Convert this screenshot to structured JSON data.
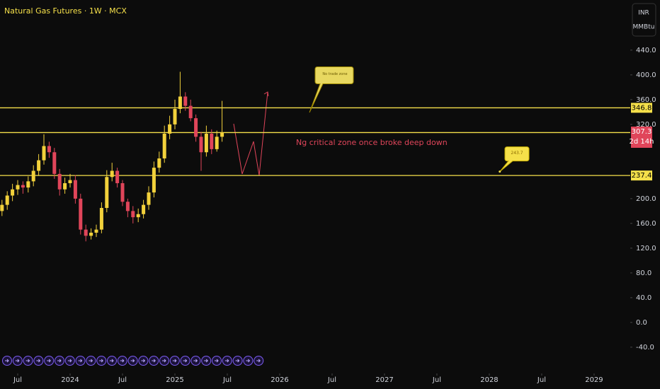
{
  "chart_data": {
    "type": "candlestick",
    "title": "Natural Gas Futures · 1W · MCX",
    "currency": "INR",
    "unit": "MMBtu",
    "x": [
      2023.35,
      2023.4,
      2023.45,
      2023.5,
      2023.55,
      2023.6,
      2023.65,
      2023.7,
      2023.75,
      2023.8,
      2023.85,
      2023.9,
      2023.95,
      2024.0,
      2024.05,
      2024.1,
      2024.15,
      2024.2,
      2024.25,
      2024.3,
      2024.35,
      2024.4,
      2024.45,
      2024.5,
      2024.55,
      2024.6,
      2024.65,
      2024.7,
      2024.75,
      2024.8,
      2024.85,
      2024.9,
      2024.95,
      2025.0,
      2025.05,
      2025.1,
      2025.15,
      2025.2,
      2025.25,
      2025.3,
      2025.35,
      2025.4,
      2025.45
    ],
    "open": [
      180,
      190,
      205,
      215,
      222,
      218,
      228,
      245,
      262,
      285,
      275,
      240,
      215,
      225,
      230,
      200,
      150,
      140,
      145,
      150,
      185,
      235,
      245,
      225,
      195,
      180,
      170,
      175,
      190,
      210,
      250,
      265,
      305,
      320,
      345,
      365,
      350,
      330,
      300,
      275,
      305,
      280,
      300
    ],
    "high": [
      198,
      212,
      224,
      230,
      228,
      236,
      254,
      272,
      304,
      292,
      282,
      248,
      234,
      240,
      238,
      208,
      158,
      152,
      158,
      194,
      246,
      258,
      250,
      230,
      200,
      188,
      184,
      198,
      220,
      260,
      276,
      318,
      334,
      360,
      405,
      372,
      360,
      336,
      308,
      318,
      312,
      310,
      358
    ],
    "low": [
      172,
      182,
      196,
      206,
      208,
      210,
      220,
      238,
      255,
      266,
      232,
      205,
      208,
      218,
      192,
      142,
      131,
      134,
      138,
      144,
      178,
      228,
      218,
      188,
      170,
      160,
      162,
      168,
      182,
      202,
      242,
      258,
      296,
      312,
      338,
      342,
      325,
      292,
      245,
      268,
      272,
      276,
      292
    ],
    "close": [
      190,
      205,
      215,
      222,
      218,
      228,
      245,
      262,
      285,
      275,
      240,
      215,
      225,
      230,
      200,
      150,
      140,
      145,
      150,
      185,
      235,
      245,
      225,
      195,
      180,
      170,
      175,
      190,
      210,
      250,
      265,
      305,
      320,
      345,
      365,
      350,
      330,
      300,
      275,
      305,
      280,
      300,
      307.3
    ],
    "up_color": "#f2d13b",
    "down_color": "#e0455a",
    "levels": [
      346.8,
      306.8,
      237.4
    ],
    "level_color": "#f5e04a",
    "countdown": "2d 14h",
    "annotations": [
      {
        "text": "Ng critical zone once broke deep down",
        "price": 295
      },
      {
        "text": "No trade zone",
        "price": 405
      },
      {
        "text": "243.7",
        "price": 243.7
      }
    ],
    "xlim": [
      2023.331,
      2029.345
    ],
    "ylim": [
      -79,
      521
    ],
    "xticks": [
      {
        "value": 2023.5,
        "label": "Jul"
      },
      {
        "value": 2024,
        "label": "2024"
      },
      {
        "value": 2024.5,
        "label": "Jul"
      },
      {
        "value": 2025,
        "label": "2025"
      },
      {
        "value": 2025.5,
        "label": "Jul"
      },
      {
        "value": 2026,
        "label": "2026"
      },
      {
        "value": 2026.5,
        "label": "Jul"
      },
      {
        "value": 2027,
        "label": "2027"
      },
      {
        "value": 2027.5,
        "label": "Jul"
      },
      {
        "value": 2028,
        "label": "2028"
      },
      {
        "value": 2028.5,
        "label": "Jul"
      },
      {
        "value": 2029,
        "label": "2029"
      }
    ],
    "yticks": [
      {
        "value": 440,
        "label": "440.0"
      },
      {
        "value": 400,
        "label": "400.0"
      },
      {
        "value": 360,
        "label": "360.0"
      },
      {
        "value": 320,
        "label": "320.0"
      },
      {
        "value": 200,
        "label": "200.0"
      },
      {
        "value": 160,
        "label": "160.0"
      },
      {
        "value": 120,
        "label": "120.0"
      },
      {
        "value": 80,
        "label": "80.0"
      },
      {
        "value": 40,
        "label": "40.0"
      },
      {
        "value": 0,
        "label": "0.0"
      },
      {
        "value": -40,
        "label": "-40.0"
      }
    ]
  }
}
